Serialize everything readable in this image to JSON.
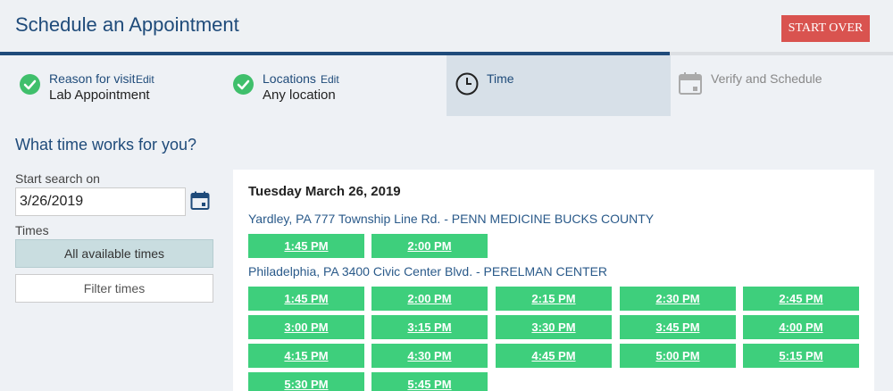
{
  "header": {
    "title": "Schedule an Appointment",
    "start_over_label": "START OVER"
  },
  "steps": [
    {
      "label": "Reason for visit",
      "edit": "Edit",
      "value": "Lab Appointment",
      "status": "done"
    },
    {
      "label": "Locations",
      "edit": "Edit",
      "value": "Any location",
      "status": "done"
    },
    {
      "label": "Time",
      "status": "active",
      "icon": "clock-icon"
    },
    {
      "label": "Verify and Schedule",
      "status": "pending",
      "icon": "calendar-icon"
    }
  ],
  "search": {
    "title": "What time works for you?",
    "start_label": "Start search on",
    "date_value": "3/26/2019",
    "times_label": "Times",
    "all_times_label": "All available times",
    "filter_label": "Filter times"
  },
  "results": {
    "date_heading": "Tuesday March 26, 2019",
    "locations": [
      {
        "name": "Yardley, PA 777 Township Line Rd. - PENN MEDICINE BUCKS COUNTY",
        "slots": [
          "1:45 PM",
          "2:00 PM"
        ]
      },
      {
        "name": "Philadelphia, PA 3400 Civic Center Blvd. - PERELMAN CENTER",
        "slots": [
          "1:45 PM",
          "2:00 PM",
          "2:15 PM",
          "2:30 PM",
          "2:45 PM",
          "3:00 PM",
          "3:15 PM",
          "3:30 PM",
          "3:45 PM",
          "4:00 PM",
          "4:15 PM",
          "4:30 PM",
          "4:45 PM",
          "5:00 PM",
          "5:15 PM",
          "5:30 PM",
          "5:45 PM"
        ]
      }
    ]
  },
  "colors": {
    "brand": "#1f4b7a",
    "slot": "#3ecf7c",
    "start_over": "#d9534f",
    "check": "#3fbf6b"
  }
}
